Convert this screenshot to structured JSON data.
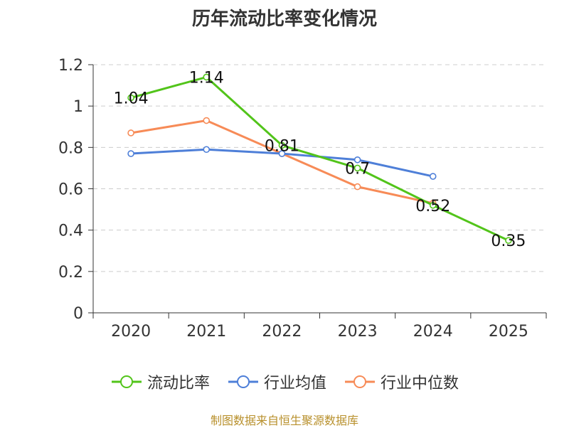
{
  "title": "历年流动比率变化情况",
  "source": "制图数据来自恒生聚源数据库",
  "colors": {
    "current_ratio": "#52c41a",
    "industry_avg": "#4e7fd8",
    "industry_median": "#f78b57",
    "axis": "#333333",
    "grid": "#cccccc"
  },
  "chart_data": {
    "type": "line",
    "title": "历年流动比率变化情况",
    "xlabel": "",
    "ylabel": "",
    "categories": [
      "2020",
      "2021",
      "2022",
      "2023",
      "2024",
      "2025"
    ],
    "ylim": [
      0,
      1.2
    ],
    "yticks": [
      "0",
      "0.2",
      "0.4",
      "0.6",
      "0.8",
      "1",
      "1.2"
    ],
    "grid": true,
    "legend_position": "bottom",
    "series": [
      {
        "name": "流动比率",
        "key": "current_ratio",
        "values": [
          1.04,
          1.14,
          0.81,
          0.7,
          0.52,
          0.35
        ],
        "labels": [
          "1.04",
          "1.14",
          "0.81",
          "0.7",
          "0.52",
          "0.35"
        ]
      },
      {
        "name": "行业均值",
        "key": "industry_avg",
        "values": [
          0.77,
          0.79,
          0.77,
          0.74,
          0.66,
          null
        ]
      },
      {
        "name": "行业中位数",
        "key": "industry_median",
        "values": [
          0.87,
          0.93,
          0.77,
          0.61,
          0.53,
          null
        ]
      }
    ]
  }
}
